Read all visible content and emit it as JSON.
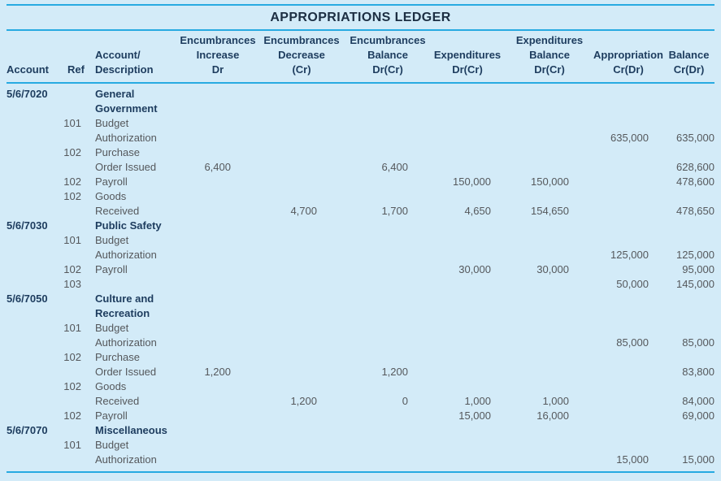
{
  "title": "APPROPRIATIONS LEDGER",
  "colors": {
    "background": "#d3ebf8",
    "rule_accent": "#27aae1",
    "heading_text": "#1d3c5e",
    "body_text": "#55585c"
  },
  "table": {
    "headers": [
      {
        "id": "account",
        "text": "Account"
      },
      {
        "id": "ref",
        "text": "Ref"
      },
      {
        "id": "description",
        "text": "Account/\nDescription"
      },
      {
        "id": "encumbrances_increase",
        "text": "Encumbrances\nIncrease\nDr"
      },
      {
        "id": "encumbrances_decrease",
        "text": "Encumbrances\nDecrease\n(Cr)"
      },
      {
        "id": "encumbrances_balance",
        "text": "Encumbrances\nBalance\nDr(Cr)"
      },
      {
        "id": "expenditures",
        "text": "Expenditures\nDr(Cr)"
      },
      {
        "id": "expenditures_balance",
        "text": "Expenditures\nBalance\nDr(Cr)"
      },
      {
        "id": "appropriation",
        "text": "Appropriation\nCr(Dr)"
      },
      {
        "id": "balance",
        "text": "Balance\nCr(Dr)"
      }
    ],
    "rows": [
      {
        "section": true,
        "account": "5/6/7020",
        "desc": "General\nGovernment"
      },
      {
        "ref": "101",
        "desc": "Budget\nAuthorization",
        "approp": "635,000",
        "bal": "635,000"
      },
      {
        "ref": "102",
        "desc": "Purchase\nOrder Issued",
        "enc_inc": "6,400",
        "enc_bal": "6,400",
        "bal": "628,600"
      },
      {
        "ref": "102",
        "desc": "Payroll",
        "exp": "150,000",
        "exp_bal": "150,000",
        "bal": "478,600"
      },
      {
        "ref": "102",
        "desc": "Goods\nReceived",
        "enc_dec": "4,700",
        "enc_bal": "1,700",
        "exp": "4,650",
        "exp_bal": "154,650",
        "bal": "478,650"
      },
      {
        "section": true,
        "account": "5/6/7030",
        "desc": "Public Safety"
      },
      {
        "ref": "101",
        "desc": "Budget\nAuthorization",
        "approp": "125,000",
        "bal": "125,000"
      },
      {
        "ref": "102",
        "desc": "Payroll",
        "exp": "30,000",
        "exp_bal": "30,000",
        "bal": "95,000"
      },
      {
        "ref": "103",
        "approp": "50,000",
        "bal": "145,000"
      },
      {
        "section": true,
        "account": "5/6/7050",
        "desc": "Culture and\nRecreation"
      },
      {
        "ref": "101",
        "desc": "Budget\nAuthorization",
        "approp": "85,000",
        "bal": "85,000"
      },
      {
        "ref": "102",
        "desc": "Purchase\nOrder Issued",
        "enc_inc": "1,200",
        "enc_bal": "1,200",
        "bal": "83,800"
      },
      {
        "ref": "102",
        "desc": "Goods\nReceived",
        "enc_dec": "1,200",
        "enc_bal": "0",
        "exp": "1,000",
        "exp_bal": "1,000",
        "bal": "84,000"
      },
      {
        "ref": "102",
        "desc": "Payroll",
        "exp": "15,000",
        "exp_bal": "16,000",
        "bal": "69,000"
      },
      {
        "section": true,
        "account": "5/6/7070",
        "desc": "Miscellaneous"
      },
      {
        "ref": "101",
        "desc": "Budget\nAuthorization",
        "approp": "15,000",
        "bal": "15,000"
      }
    ]
  }
}
